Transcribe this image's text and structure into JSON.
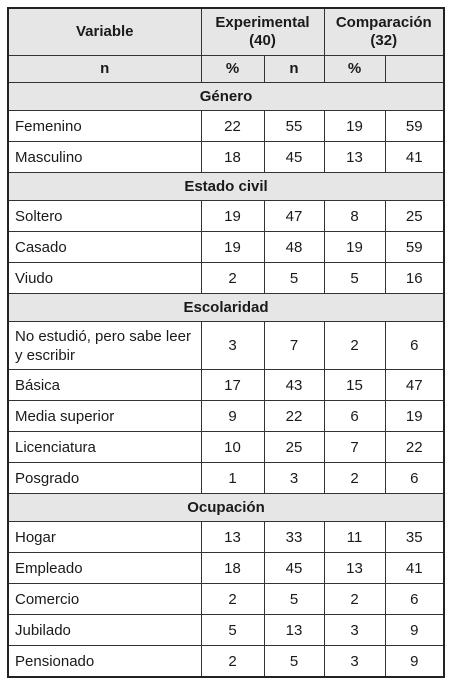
{
  "header": {
    "variable": "Variable",
    "experimental": "Experimental (40)",
    "comparacion": "Comparación (32)",
    "sub": [
      "n",
      "%",
      "n",
      "%"
    ]
  },
  "sections": [
    {
      "title": "Género",
      "rows": [
        {
          "label": "Femenino",
          "values": [
            22,
            55,
            19,
            59
          ]
        },
        {
          "label": "Masculino",
          "values": [
            18,
            45,
            13,
            41
          ]
        }
      ]
    },
    {
      "title": "Estado civil",
      "rows": [
        {
          "label": "Soltero",
          "values": [
            19,
            47,
            8,
            25
          ]
        },
        {
          "label": "Casado",
          "values": [
            19,
            48,
            19,
            59
          ]
        },
        {
          "label": "Viudo",
          "values": [
            2,
            5,
            5,
            16
          ]
        }
      ]
    },
    {
      "title": "Escolaridad",
      "rows": [
        {
          "label": "No estudió, pero sabe leer y escribir",
          "values": [
            3,
            7,
            2,
            6
          ]
        },
        {
          "label": "Básica",
          "values": [
            17,
            43,
            15,
            47
          ]
        },
        {
          "label": "Media superior",
          "values": [
            9,
            22,
            6,
            19
          ]
        },
        {
          "label": "Licenciatura",
          "values": [
            10,
            25,
            7,
            22
          ]
        },
        {
          "label": "Posgrado",
          "values": [
            1,
            3,
            2,
            6
          ]
        }
      ]
    },
    {
      "title": "Ocupación",
      "rows": [
        {
          "label": "Hogar",
          "values": [
            13,
            33,
            11,
            35
          ]
        },
        {
          "label": "Empleado",
          "values": [
            18,
            45,
            13,
            41
          ]
        },
        {
          "label": "Comercio",
          "values": [
            2,
            5,
            2,
            6
          ]
        },
        {
          "label": "Jubilado",
          "values": [
            5,
            13,
            3,
            9
          ]
        },
        {
          "label": "Pensionado",
          "values": [
            2,
            5,
            3,
            9
          ]
        }
      ]
    }
  ]
}
